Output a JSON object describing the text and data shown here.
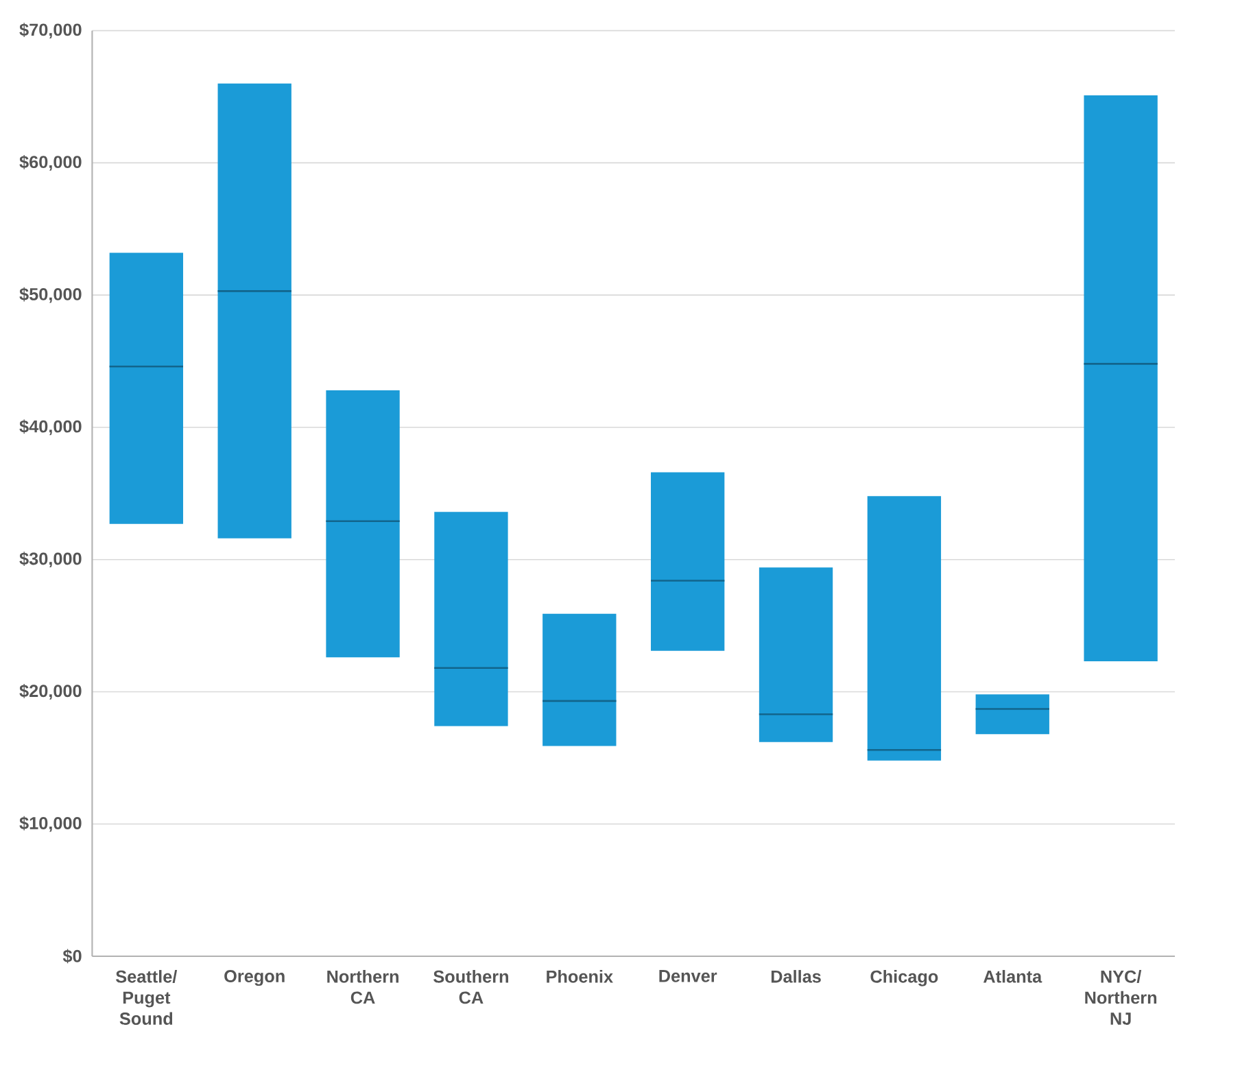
{
  "chart_data": {
    "type": "box",
    "categories": [
      "Seattle/ Puget Sound",
      "Oregon",
      "Northern CA",
      "Southern CA",
      "Phoenix",
      "Denver",
      "Dallas",
      "Chicago",
      "Atlanta",
      "NYC/ Northern NJ"
    ],
    "boxes": [
      {
        "low": 32700,
        "q1": 32700,
        "median": 44600,
        "q3": 53200,
        "high": 53200
      },
      {
        "low": 31600,
        "q1": 31600,
        "median": 50300,
        "q3": 66000,
        "high": 66000
      },
      {
        "low": 22600,
        "q1": 22600,
        "median": 32900,
        "q3": 42800,
        "high": 42800
      },
      {
        "low": 17400,
        "q1": 17400,
        "median": 21800,
        "q3": 33600,
        "high": 33600
      },
      {
        "low": 15900,
        "q1": 15900,
        "median": 19300,
        "q3": 25900,
        "high": 25900
      },
      {
        "low": 23100,
        "q1": 23100,
        "median": 28400,
        "q3": 36600,
        "high": 36600
      },
      {
        "low": 16200,
        "q1": 16200,
        "median": 18300,
        "q3": 29400,
        "high": 29400
      },
      {
        "low": 14800,
        "q1": 14800,
        "median": 15600,
        "q3": 34800,
        "high": 34800
      },
      {
        "low": 16800,
        "q1": 16800,
        "median": 18700,
        "q3": 19800,
        "high": 19800
      },
      {
        "low": 22300,
        "q1": 22300,
        "median": 44800,
        "q3": 65100,
        "high": 65100
      }
    ],
    "color": "#1b9bd7",
    "ylim": [
      0,
      70000
    ],
    "yticks": [
      {
        "value": 0,
        "label": "$0"
      },
      {
        "value": 10000,
        "label": "$10,000"
      },
      {
        "value": 20000,
        "label": "$20,000"
      },
      {
        "value": 30000,
        "label": "$30,000"
      },
      {
        "value": 40000,
        "label": "$40,000"
      },
      {
        "value": 50000,
        "label": "$50,000"
      },
      {
        "value": 60000,
        "label": "$60,000"
      },
      {
        "value": 70000,
        "label": "$70,000"
      }
    ],
    "grid": "y"
  }
}
